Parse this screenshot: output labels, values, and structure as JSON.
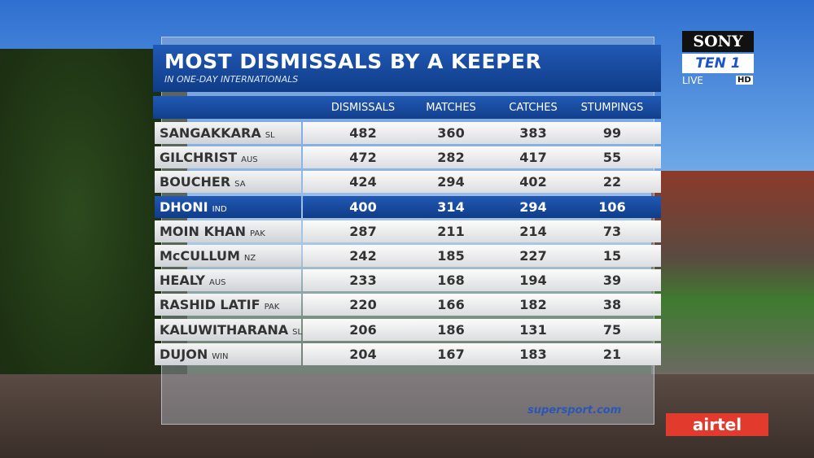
{
  "header": {
    "title": "MOST DISMISSALS BY A KEEPER",
    "subtitle": "IN ONE-DAY INTERNATIONALS"
  },
  "table": {
    "columns": [
      "DISMISSALS",
      "MATCHES",
      "CATCHES",
      "STUMPINGS"
    ],
    "rows": [
      {
        "name": "SANGAKKARA",
        "country": "SL",
        "values": [
          "482",
          "360",
          "383",
          "99"
        ]
      },
      {
        "name": "GILCHRIST",
        "country": "AUS",
        "values": [
          "472",
          "282",
          "417",
          "55"
        ]
      },
      {
        "name": "BOUCHER",
        "country": "SA",
        "values": [
          "424",
          "294",
          "402",
          "22"
        ]
      },
      {
        "name": "DHONI",
        "country": "IND",
        "values": [
          "400",
          "314",
          "294",
          "106"
        ]
      },
      {
        "name": "MOIN KHAN",
        "country": "PAK",
        "values": [
          "287",
          "211",
          "214",
          "73"
        ]
      },
      {
        "name": "McCULLUM",
        "country": "NZ",
        "values": [
          "242",
          "185",
          "227",
          "15"
        ]
      },
      {
        "name": "HEALY",
        "country": "AUS",
        "values": [
          "233",
          "168",
          "194",
          "39"
        ]
      },
      {
        "name": "RASHID LATIF",
        "country": "PAK",
        "values": [
          "220",
          "166",
          "182",
          "38"
        ]
      },
      {
        "name": "KALUWITHARANA",
        "country": "SL",
        "values": [
          "206",
          "186",
          "131",
          "75"
        ]
      },
      {
        "name": "DUJON",
        "country": "WIN",
        "values": [
          "204",
          "167",
          "183",
          "21"
        ]
      }
    ]
  },
  "branding": {
    "channel": "SONY",
    "feed": "TEN 1",
    "live": "LIVE",
    "hd": "HD",
    "provider": "supersport.com",
    "sponsor": "airtel"
  }
}
